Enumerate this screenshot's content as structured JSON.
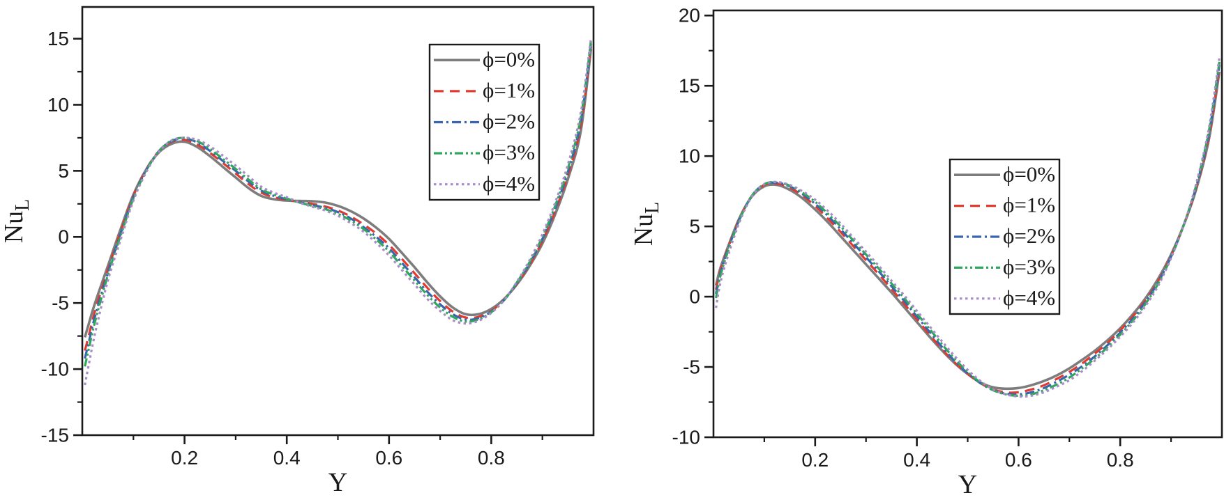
{
  "figure": {
    "background": "#ffffff",
    "axis_color": "#1a1a1a",
    "description": "Two line charts of local Nusselt number NuL versus Y for nanoparticle volume fractions 0-4%"
  },
  "chart_data": [
    {
      "type": "line",
      "title": "",
      "xlabel": "Y",
      "ylabel": "Nu",
      "ylabel_subscript": "L",
      "xlim": [
        0,
        1
      ],
      "ylim": [
        -15,
        17.4
      ],
      "xticks": [
        0.2,
        0.4,
        0.6,
        0.8
      ],
      "xtick_labels": [
        "0.2",
        "0.4",
        "0.6",
        "0.8"
      ],
      "x_minor_ticks": [
        0.1,
        0.3,
        0.5,
        0.7,
        0.9
      ],
      "yticks": [
        -15,
        -10,
        -5,
        0,
        5,
        10,
        15
      ],
      "ytick_labels": [
        "-15",
        "-10",
        "-5",
        "0",
        "5",
        "10",
        "15"
      ],
      "y_minor_ticks": [
        -12.5,
        -7.5,
        -2.5,
        2.5,
        7.5,
        12.5
      ],
      "grid": false,
      "legend_position": "upper-right-inside",
      "x": [
        0.005,
        0.0125,
        0.025,
        0.05,
        0.075,
        0.1,
        0.125,
        0.15,
        0.175,
        0.2,
        0.225,
        0.25,
        0.275,
        0.3,
        0.325,
        0.35,
        0.375,
        0.4,
        0.425,
        0.45,
        0.475,
        0.5,
        0.525,
        0.55,
        0.575,
        0.6,
        0.625,
        0.65,
        0.675,
        0.7,
        0.725,
        0.75,
        0.775,
        0.8,
        0.825,
        0.85,
        0.875,
        0.9,
        0.925,
        0.95,
        0.975,
        0.995
      ],
      "series": [
        {
          "name": "ϕ=0%",
          "color": "#7d7d7d",
          "style": "solid",
          "values": [
            -7.6,
            -6.6,
            -5.0,
            -2.2,
            0.6,
            3.2,
            5.1,
            6.4,
            7.05,
            7.2,
            6.8,
            6.1,
            5.3,
            4.5,
            3.7,
            3.1,
            2.85,
            2.75,
            2.72,
            2.7,
            2.6,
            2.35,
            1.95,
            1.4,
            0.7,
            -0.15,
            -1.2,
            -2.3,
            -3.45,
            -4.5,
            -5.35,
            -5.85,
            -5.85,
            -5.45,
            -4.7,
            -3.6,
            -2.2,
            -0.5,
            1.7,
            4.4,
            8.0,
            14.2
          ]
        },
        {
          "name": "ϕ=1%",
          "color": "#e3392f",
          "style": "dashed",
          "values": [
            -8.6,
            -7.5,
            -5.6,
            -2.5,
            0.4,
            3.1,
            5.1,
            6.5,
            7.2,
            7.35,
            7.0,
            6.35,
            5.6,
            4.8,
            4.0,
            3.35,
            3.0,
            2.8,
            2.65,
            2.5,
            2.3,
            2.0,
            1.55,
            0.95,
            0.25,
            -0.6,
            -1.65,
            -2.75,
            -3.85,
            -4.85,
            -5.65,
            -6.1,
            -6.05,
            -5.6,
            -4.75,
            -3.55,
            -2.1,
            -0.3,
            1.95,
            4.7,
            8.4,
            14.4
          ]
        },
        {
          "name": "ϕ=2%",
          "color": "#3a64ae",
          "style": "dash-dot",
          "values": [
            -9.2,
            -8.0,
            -6.0,
            -2.7,
            0.25,
            3.0,
            5.05,
            6.5,
            7.25,
            7.45,
            7.15,
            6.5,
            5.75,
            5.0,
            4.2,
            3.5,
            3.1,
            2.85,
            2.62,
            2.42,
            2.2,
            1.88,
            1.4,
            0.75,
            0.0,
            -0.85,
            -1.95,
            -3.05,
            -4.15,
            -5.1,
            -5.85,
            -6.25,
            -6.15,
            -5.65,
            -4.78,
            -3.5,
            -2.0,
            -0.15,
            2.15,
            4.95,
            8.7,
            14.6
          ]
        },
        {
          "name": "ϕ=3%",
          "color": "#2fa65c",
          "style": "dash-dot-dot",
          "values": [
            -9.8,
            -8.5,
            -6.4,
            -2.9,
            0.1,
            2.9,
            5.0,
            6.5,
            7.3,
            7.5,
            7.25,
            6.65,
            5.9,
            5.15,
            4.35,
            3.6,
            3.2,
            2.9,
            2.6,
            2.35,
            2.1,
            1.75,
            1.25,
            0.6,
            -0.2,
            -1.1,
            -2.2,
            -3.3,
            -4.4,
            -5.35,
            -6.05,
            -6.4,
            -6.25,
            -5.7,
            -4.8,
            -3.45,
            -1.9,
            0.0,
            2.35,
            5.2,
            9.0,
            14.8
          ]
        },
        {
          "name": "ϕ=4%",
          "color": "#a98bc8",
          "style": "dotted",
          "values": [
            -11.2,
            -9.7,
            -7.3,
            -3.3,
            -0.2,
            2.75,
            4.9,
            6.45,
            7.3,
            7.5,
            7.35,
            6.85,
            6.15,
            5.4,
            4.6,
            3.8,
            3.35,
            3.0,
            2.6,
            2.28,
            2.0,
            1.6,
            1.05,
            0.4,
            -0.45,
            -1.4,
            -2.5,
            -3.6,
            -4.7,
            -5.6,
            -6.3,
            -6.55,
            -6.35,
            -5.75,
            -4.8,
            -3.4,
            -1.75,
            0.2,
            2.6,
            5.5,
            9.4,
            15.0
          ]
        }
      ]
    },
    {
      "type": "line",
      "title": "",
      "xlabel": "Y",
      "ylabel": "Nu",
      "ylabel_subscript": "L",
      "xlim": [
        0,
        1
      ],
      "ylim": [
        -10,
        20.36
      ],
      "xticks": [
        0.2,
        0.4,
        0.6,
        0.8
      ],
      "xtick_labels": [
        "0.2",
        "0.4",
        "0.6",
        "0.8"
      ],
      "x_minor_ticks": [
        0.1,
        0.3,
        0.5,
        0.7,
        0.9
      ],
      "yticks": [
        -10,
        -5,
        0,
        5,
        10,
        15,
        20
      ],
      "ytick_labels": [
        "-10",
        "-5",
        "0",
        "5",
        "10",
        "15",
        "20"
      ],
      "y_minor_ticks": [
        -7.5,
        -2.5,
        2.5,
        7.5,
        12.5,
        17.5
      ],
      "grid": false,
      "legend_position": "center-right-inside",
      "x": [
        0.005,
        0.0125,
        0.025,
        0.05,
        0.075,
        0.1,
        0.125,
        0.15,
        0.175,
        0.2,
        0.225,
        0.25,
        0.275,
        0.3,
        0.325,
        0.35,
        0.375,
        0.4,
        0.425,
        0.45,
        0.475,
        0.5,
        0.525,
        0.55,
        0.575,
        0.6,
        0.625,
        0.65,
        0.675,
        0.7,
        0.725,
        0.75,
        0.775,
        0.8,
        0.825,
        0.85,
        0.875,
        0.9,
        0.925,
        0.95,
        0.975,
        0.995
      ],
      "series": [
        {
          "name": "ϕ=0%",
          "color": "#7d7d7d",
          "style": "solid",
          "values": [
            0.8,
            1.9,
            3.2,
            5.5,
            7.1,
            7.85,
            7.95,
            7.6,
            7.0,
            6.2,
            5.3,
            4.3,
            3.3,
            2.3,
            1.3,
            0.3,
            -0.75,
            -1.8,
            -2.85,
            -3.85,
            -4.75,
            -5.5,
            -6.1,
            -6.45,
            -6.55,
            -6.5,
            -6.3,
            -6.0,
            -5.6,
            -5.1,
            -4.5,
            -3.85,
            -3.1,
            -2.25,
            -1.25,
            -0.1,
            1.3,
            3.0,
            5.1,
            7.7,
            11.3,
            16.0
          ]
        },
        {
          "name": "ϕ=1%",
          "color": "#e3392f",
          "style": "dashed",
          "values": [
            0.5,
            1.7,
            3.1,
            5.45,
            7.15,
            7.95,
            8.05,
            7.75,
            7.2,
            6.45,
            5.55,
            4.6,
            3.6,
            2.6,
            1.6,
            0.55,
            -0.5,
            -1.6,
            -2.7,
            -3.75,
            -4.7,
            -5.5,
            -6.15,
            -6.6,
            -6.8,
            -6.8,
            -6.6,
            -6.3,
            -5.85,
            -5.35,
            -4.75,
            -4.05,
            -3.3,
            -2.4,
            -1.4,
            -0.25,
            1.15,
            2.9,
            5.1,
            7.8,
            11.5,
            16.3
          ]
        },
        {
          "name": "ϕ=2%",
          "color": "#3a64ae",
          "style": "dash-dot",
          "values": [
            0.2,
            1.5,
            3.0,
            5.4,
            7.15,
            8.0,
            8.1,
            7.85,
            7.3,
            6.6,
            5.75,
            4.8,
            3.8,
            2.8,
            1.8,
            0.75,
            -0.3,
            -1.4,
            -2.5,
            -3.6,
            -4.6,
            -5.45,
            -6.15,
            -6.65,
            -6.9,
            -6.95,
            -6.8,
            -6.5,
            -6.05,
            -5.55,
            -4.95,
            -4.25,
            -3.45,
            -2.55,
            -1.55,
            -0.35,
            1.05,
            2.85,
            5.1,
            7.9,
            11.7,
            16.5
          ]
        },
        {
          "name": "ϕ=3%",
          "color": "#2fa65c",
          "style": "dash-dot-dot",
          "values": [
            -0.1,
            1.3,
            2.85,
            5.35,
            7.15,
            8.0,
            8.15,
            7.9,
            7.4,
            6.75,
            5.9,
            5.0,
            4.0,
            3.0,
            2.0,
            0.95,
            -0.1,
            -1.2,
            -2.3,
            -3.4,
            -4.45,
            -5.35,
            -6.1,
            -6.65,
            -6.95,
            -7.05,
            -6.95,
            -6.65,
            -6.25,
            -5.75,
            -5.1,
            -4.4,
            -3.6,
            -2.7,
            -1.7,
            -0.5,
            0.95,
            2.8,
            5.1,
            8.0,
            11.9,
            16.7
          ]
        },
        {
          "name": "ϕ=4%",
          "color": "#a98bc8",
          "style": "dotted",
          "values": [
            -0.8,
            0.8,
            2.5,
            5.2,
            7.1,
            8.0,
            8.15,
            7.95,
            7.5,
            6.9,
            6.1,
            5.2,
            4.2,
            3.2,
            2.2,
            1.15,
            0.1,
            -1.0,
            -2.1,
            -3.2,
            -4.25,
            -5.2,
            -6.0,
            -6.6,
            -6.95,
            -7.1,
            -7.05,
            -6.8,
            -6.4,
            -5.95,
            -5.3,
            -4.55,
            -3.75,
            -2.85,
            -1.85,
            -0.65,
            0.8,
            2.75,
            5.1,
            8.1,
            12.1,
            17.0
          ]
        }
      ]
    }
  ]
}
